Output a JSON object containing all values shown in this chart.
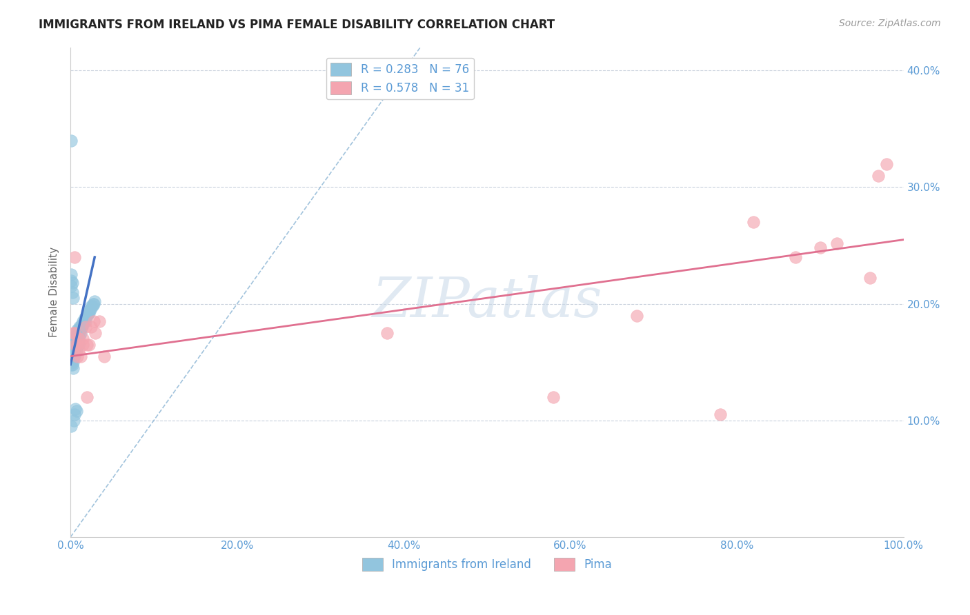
{
  "title": "IMMIGRANTS FROM IRELAND VS PIMA FEMALE DISABILITY CORRELATION CHART",
  "source_text": "Source: ZipAtlas.com",
  "ylabel": "Female Disability",
  "legend_label_1": "Immigrants from Ireland",
  "legend_label_2": "Pima",
  "r1": 0.283,
  "n1": 76,
  "r2": 0.578,
  "n2": 31,
  "xlim": [
    0.0,
    1.0
  ],
  "ylim": [
    0.0,
    0.42
  ],
  "xticks": [
    0.0,
    0.1,
    0.2,
    0.3,
    0.4,
    0.5,
    0.6,
    0.7,
    0.8,
    0.9,
    1.0
  ],
  "yticks": [
    0.1,
    0.2,
    0.3,
    0.4
  ],
  "xticklabels": [
    "0.0%",
    "",
    "20.0%",
    "",
    "40.0%",
    "",
    "60.0%",
    "",
    "80.0%",
    "",
    "100.0%"
  ],
  "yticklabels_right": [
    "10.0%",
    "20.0%",
    "30.0%",
    "40.0%"
  ],
  "color_blue": "#92c5de",
  "color_pink": "#f4a5b0",
  "color_blue_line": "#4472c4",
  "color_pink_line": "#e07090",
  "color_text": "#5b9bd5",
  "background_color": "#ffffff",
  "blue_x": [
    0.001,
    0.001,
    0.001,
    0.001,
    0.001,
    0.001,
    0.001,
    0.001,
    0.002,
    0.002,
    0.002,
    0.002,
    0.002,
    0.002,
    0.003,
    0.003,
    0.003,
    0.003,
    0.003,
    0.004,
    0.004,
    0.004,
    0.004,
    0.005,
    0.005,
    0.005,
    0.005,
    0.006,
    0.006,
    0.006,
    0.007,
    0.007,
    0.007,
    0.008,
    0.008,
    0.008,
    0.009,
    0.009,
    0.01,
    0.01,
    0.01,
    0.011,
    0.011,
    0.012,
    0.012,
    0.013,
    0.013,
    0.014,
    0.015,
    0.015,
    0.016,
    0.017,
    0.018,
    0.019,
    0.02,
    0.021,
    0.022,
    0.023,
    0.024,
    0.025,
    0.026,
    0.027,
    0.028,
    0.029,
    0.001,
    0.001,
    0.001,
    0.002,
    0.002,
    0.003,
    0.004,
    0.005,
    0.006,
    0.007,
    0.001,
    0.001
  ],
  "blue_y": [
    0.155,
    0.16,
    0.165,
    0.155,
    0.148,
    0.158,
    0.162,
    0.157,
    0.16,
    0.155,
    0.152,
    0.148,
    0.158,
    0.165,
    0.162,
    0.155,
    0.15,
    0.168,
    0.145,
    0.158,
    0.162,
    0.155,
    0.168,
    0.16,
    0.155,
    0.162,
    0.172,
    0.165,
    0.158,
    0.17,
    0.168,
    0.175,
    0.16,
    0.172,
    0.165,
    0.178,
    0.17,
    0.168,
    0.175,
    0.178,
    0.165,
    0.172,
    0.18,
    0.175,
    0.178,
    0.18,
    0.182,
    0.18,
    0.182,
    0.185,
    0.185,
    0.188,
    0.185,
    0.19,
    0.19,
    0.192,
    0.192,
    0.195,
    0.195,
    0.198,
    0.198,
    0.2,
    0.2,
    0.202,
    0.22,
    0.225,
    0.215,
    0.218,
    0.21,
    0.205,
    0.1,
    0.105,
    0.11,
    0.108,
    0.095,
    0.34
  ],
  "pink_x": [
    0.005,
    0.008,
    0.01,
    0.015,
    0.02,
    0.025,
    0.03,
    0.035,
    0.04,
    0.005,
    0.008,
    0.01,
    0.015,
    0.02,
    0.003,
    0.006,
    0.012,
    0.018,
    0.022,
    0.028,
    0.38,
    0.58,
    0.68,
    0.78,
    0.82,
    0.87,
    0.9,
    0.92,
    0.96,
    0.97,
    0.98
  ],
  "pink_y": [
    0.175,
    0.165,
    0.16,
    0.17,
    0.165,
    0.18,
    0.175,
    0.185,
    0.155,
    0.24,
    0.155,
    0.17,
    0.165,
    0.12,
    0.175,
    0.165,
    0.155,
    0.18,
    0.165,
    0.185,
    0.175,
    0.12,
    0.19,
    0.105,
    0.27,
    0.24,
    0.248,
    0.252,
    0.222,
    0.31,
    0.32
  ],
  "blue_trend_x": [
    0.0,
    0.029
  ],
  "blue_trend_y_start": 0.148,
  "blue_trend_y_end": 0.24,
  "pink_trend_x": [
    0.0,
    1.0
  ],
  "pink_trend_y_start": 0.155,
  "pink_trend_y_end": 0.255,
  "ref_line_x": [
    0.0,
    1.0
  ],
  "ref_line_y": [
    0.0,
    1.0
  ],
  "watermark_text": "ZIPatlas",
  "watermark_color": "#c8d8e8"
}
